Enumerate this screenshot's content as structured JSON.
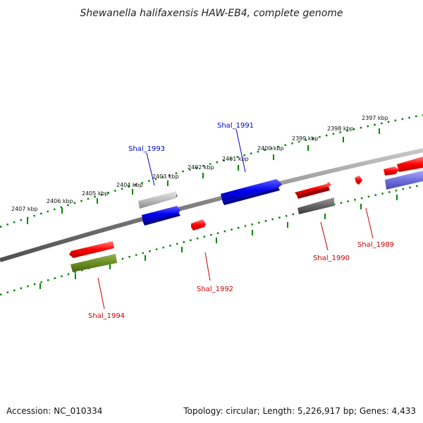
{
  "title": "Shewanella halifaxensis HAW-EB4, complete genome",
  "footer": {
    "accession": "Accession: NC_010334",
    "summary": "Topology: circular; Length: 5,226,917 bp; Genes: 4,433"
  },
  "ticks": [
    "2407 kbp",
    "2406 kbp",
    "2405 kbp",
    "2404 kbp",
    "2403 kbp",
    "2402 kbp",
    "2401 kbp",
    "2400 kbp",
    "2399 kbp",
    "2398 kbp",
    "2397 kbp"
  ],
  "genes": [
    {
      "name": "Shal_1993",
      "color": "#0000cc"
    },
    {
      "name": "Shal_1991",
      "color": "#0000cc"
    },
    {
      "name": "Shal_1992",
      "color": "#cc0000"
    },
    {
      "name": "Shal_1994",
      "color": "#cc0000"
    },
    {
      "name": "Shal_1990",
      "color": "#cc0000"
    },
    {
      "name": "Shal_1989",
      "color": "#cc0000"
    }
  ],
  "colors": {
    "forward_strand": "#0000ee",
    "reverse_strand": "#ee0000",
    "tick": "#008800",
    "backbone": "#808080"
  }
}
